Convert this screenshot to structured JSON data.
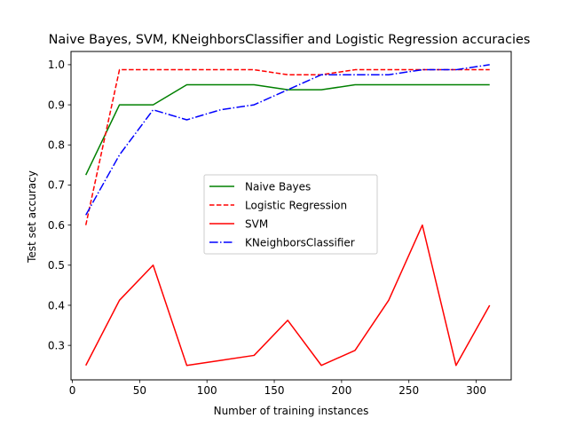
{
  "chart_data": {
    "type": "line",
    "title": "Naive Bayes, SVM, KNeighborsClassifier and Logistic Regression accuracies",
    "xlabel": "Number of training instances",
    "ylabel": "Test set accuracy",
    "xlim": [
      -1,
      326
    ],
    "ylim": [
      0.214,
      1.033
    ],
    "xticks": [
      0,
      50,
      100,
      150,
      200,
      250,
      300
    ],
    "yticks": [
      0.3,
      0.4,
      0.5,
      0.6,
      0.7,
      0.8,
      0.9,
      1.0
    ],
    "xtick_labels": [
      "0",
      "50",
      "100",
      "150",
      "200",
      "250",
      "300"
    ],
    "ytick_labels": [
      "0.3",
      "0.4",
      "0.5",
      "0.6",
      "0.7",
      "0.8",
      "0.9",
      "1.0"
    ],
    "grid": false,
    "legend_position": "center",
    "x": [
      10,
      35,
      60,
      85,
      110,
      135,
      160,
      185,
      210,
      235,
      260,
      285,
      310
    ],
    "series": [
      {
        "name": "Naive Bayes",
        "color": "#008000",
        "dash": "solid",
        "values": [
          0.725,
          0.9,
          0.9,
          0.95,
          0.95,
          0.95,
          0.9375,
          0.9375,
          0.95,
          0.95,
          0.95,
          0.95,
          0.95
        ]
      },
      {
        "name": "Logistic Regression",
        "color": "#ff0000",
        "dash": "dashed",
        "values": [
          0.6,
          0.9875,
          0.9875,
          0.9875,
          0.9875,
          0.9875,
          0.975,
          0.975,
          0.9875,
          0.9875,
          0.9875,
          0.9875,
          0.9875
        ]
      },
      {
        "name": "SVM",
        "color": "#ff0000",
        "dash": "solid",
        "values": [
          0.25,
          0.4125,
          0.5,
          0.25,
          0.2625,
          0.275,
          0.3625,
          0.25,
          0.2875,
          0.4125,
          0.6,
          0.25,
          0.4
        ]
      },
      {
        "name": "KNeighborsClassifier",
        "color": "#0000ff",
        "dash": "dashdot",
        "values": [
          0.625,
          0.775,
          0.8875,
          0.8625,
          0.8875,
          0.9,
          0.9375,
          0.975,
          0.975,
          0.975,
          0.9875,
          0.9875,
          1.0
        ]
      }
    ]
  }
}
